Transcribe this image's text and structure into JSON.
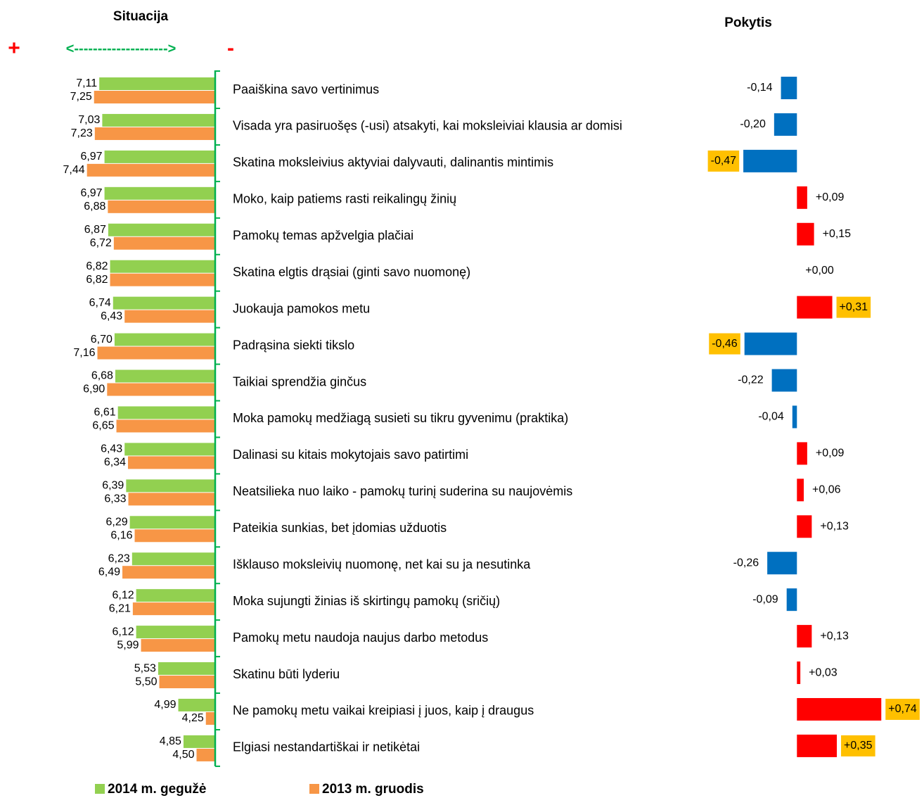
{
  "chart_data": [
    {
      "type": "hbar",
      "title": "Situacija",
      "xaxis_reversed": true,
      "xlim": [
        4,
        8
      ],
      "direction": {
        "plus": "+",
        "arrow": "<-------------------->",
        "minus": "-"
      },
      "categories": [
        "Paaiškina savo vertinimus",
        "Visada yra pasiruošęs (-usi) atsakyti, kai moksleiviai klausia ar domisi",
        "Skatina moksleivius aktyviai dalyvauti, dalinantis mintimis",
        "Moko, kaip patiems rasti reikalingų žinių",
        "Pamokų temas apžvelgia plačiai",
        "Skatina elgtis drąsiai (ginti savo nuomonę)",
        "Juokauja pamokos metu",
        "Padrąsina siekti tikslo",
        "Taikiai sprendžia ginčus",
        "Moka pamokų medžiagą susieti su tikru gyvenimu (praktika)",
        "Dalinasi su kitais mokytojais savo patirtimi",
        "Neatsilieka nuo laiko - pamokų turinį suderina su naujovėmis",
        "Pateikia sunkias, bet įdomias užduotis",
        "Išklauso moksleivių nuomonę, net kai su ja nesutinka",
        "Moka sujungti žinias iš skirtingų pamokų (sričių)",
        "Pamokų metu naudoja naujus darbo metodus",
        "Skatinu būti lyderiu",
        "Ne pamokų metu vaikai kreipiasi į juos, kaip į draugus",
        "Elgiasi nestandartiškai ir netikėtai"
      ],
      "series": [
        {
          "name": "2014 m. gegužė",
          "color": "#92d050",
          "values": [
            7.11,
            7.03,
            6.97,
            6.97,
            6.87,
            6.82,
            6.74,
            6.7,
            6.68,
            6.61,
            6.43,
            6.39,
            6.29,
            6.23,
            6.12,
            6.12,
            5.53,
            4.99,
            4.85
          ],
          "value_labels": [
            "7,11",
            "7,03",
            "6,97",
            "6,97",
            "6,87",
            "6,82",
            "6,74",
            "6,70",
            "6,68",
            "6,61",
            "6,43",
            "6,39",
            "6,29",
            "6,23",
            "6,12",
            "6,12",
            "5,53",
            "4,99",
            "4,85"
          ]
        },
        {
          "name": "2013 m. gruodis",
          "color": "#f79646",
          "values": [
            7.25,
            7.23,
            7.44,
            6.88,
            6.72,
            6.82,
            6.43,
            7.16,
            6.9,
            6.65,
            6.34,
            6.33,
            6.16,
            6.49,
            6.21,
            5.99,
            5.5,
            4.25,
            4.5
          ],
          "value_labels": [
            "7,25",
            "7,23",
            "7,44",
            "6,88",
            "6,72",
            "6,82",
            "6,43",
            "7,16",
            "6,90",
            "6,65",
            "6,34",
            "6,33",
            "6,16",
            "6,49",
            "6,21",
            "5,99",
            "5,50",
            "4,25",
            "4,50"
          ]
        }
      ]
    },
    {
      "type": "change",
      "title": "Pokytis",
      "xlim": [
        -0.6,
        0.8
      ],
      "positive_color": "#ff0000",
      "negative_color": "#0070c0",
      "highlight_color": "#ffc000",
      "highlight_indices": [
        2,
        6,
        7,
        17,
        18
      ],
      "values": [
        -0.14,
        -0.2,
        -0.47,
        0.09,
        0.15,
        0.0,
        0.31,
        -0.46,
        -0.22,
        -0.04,
        0.09,
        0.06,
        0.13,
        -0.26,
        -0.09,
        0.13,
        0.03,
        0.74,
        0.35
      ],
      "value_labels": [
        "-0,14",
        "-0,20",
        "-0,47",
        "+0,09",
        "+0,15",
        "+0,00",
        "+0,31",
        "-0,46",
        "-0,22",
        "-0,04",
        "+0,09",
        "+0,06",
        "+0,13",
        "-0,26",
        "-0,09",
        "+0,13",
        "+0,03",
        "+0,74",
        "+0,35"
      ]
    }
  ]
}
